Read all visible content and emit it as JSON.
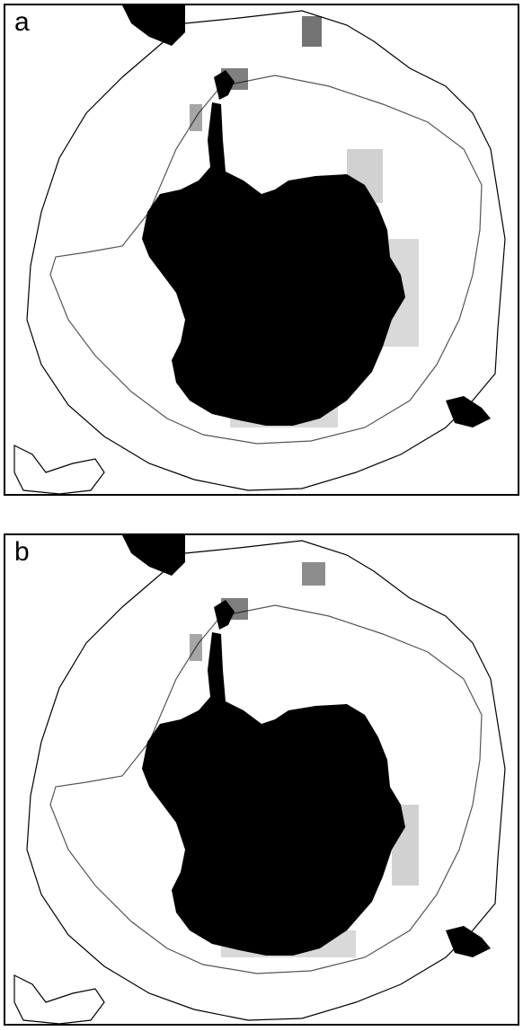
{
  "figure": {
    "panels": [
      {
        "label": "a",
        "description_key": "panel-a"
      },
      {
        "label": "b",
        "description_key": "panel-b"
      }
    ],
    "colors": {
      "land": "#000000",
      "contour": "#000000",
      "front": "#555555",
      "background": "#ffffff"
    }
  }
}
